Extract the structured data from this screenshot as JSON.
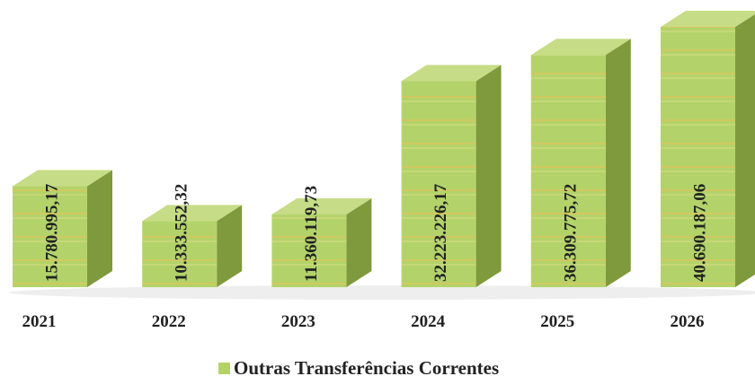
{
  "chart_data": {
    "type": "bar",
    "categories": [
      "2021",
      "2022",
      "2023",
      "2024",
      "2025",
      "2026"
    ],
    "series": [
      {
        "name": "Outras Transferências Correntes",
        "color": "#b3d36a",
        "values": [
          15780995.17,
          10333552.32,
          11360119.73,
          32223226.17,
          36309775.72,
          40690187.06
        ],
        "value_labels": [
          "15.780.995,17",
          "10.333.552,32",
          "11.360.119,73",
          "32.223.226,17",
          "36.309.775,72",
          "40.690.187,06"
        ]
      }
    ],
    "legend": "bottom"
  }
}
